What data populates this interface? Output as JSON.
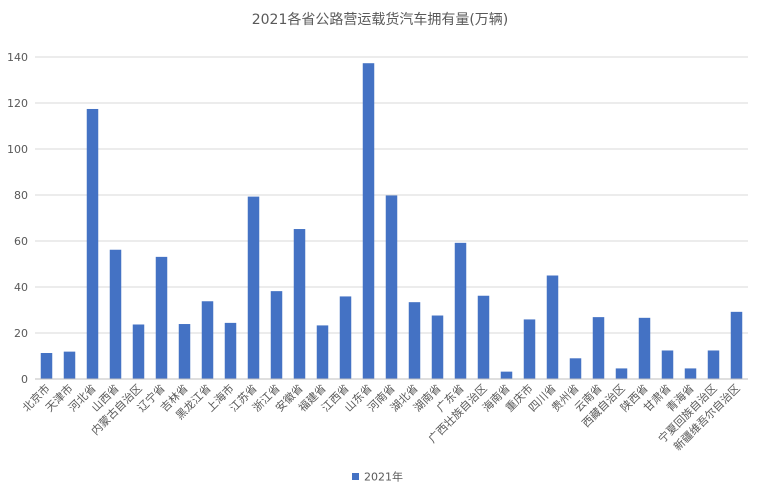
{
  "chart_data": {
    "type": "bar",
    "title": "2021各省公路营运载货汽车拥有量(万辆)",
    "xlabel": "",
    "ylabel": "",
    "ylim": [
      0,
      140
    ],
    "yticks": [
      0,
      20,
      40,
      60,
      80,
      100,
      120,
      140
    ],
    "grid": true,
    "legend_position": "bottom",
    "categories": [
      "北京市",
      "天津市",
      "河北省",
      "山西省",
      "内蒙古自治区",
      "辽宁省",
      "吉林省",
      "黑龙江省",
      "上海市",
      "江苏省",
      "浙江省",
      "安徽省",
      "福建省",
      "江西省",
      "山东省",
      "河南省",
      "湖北省",
      "湖南省",
      "广东省",
      "广西壮族自治区",
      "海南省",
      "重庆市",
      "四川省",
      "贵州省",
      "云南省",
      "西藏自治区",
      "陕西省",
      "甘肃省",
      "青海省",
      "宁夏回族自治区",
      "新疆维吾尔自治区"
    ],
    "series": [
      {
        "name": "2021年",
        "color": "#4472c4",
        "values": [
          11.3,
          11.9,
          117.4,
          56.2,
          23.7,
          53.1,
          23.9,
          33.8,
          24.4,
          79.3,
          38.2,
          65.2,
          23.3,
          35.9,
          137.3,
          79.8,
          33.4,
          27.6,
          59.2,
          36.2,
          3.2,
          25.9,
          45.0,
          9.0,
          26.9,
          4.6,
          26.6,
          12.4,
          4.6,
          12.4,
          29.2
        ]
      }
    ]
  }
}
